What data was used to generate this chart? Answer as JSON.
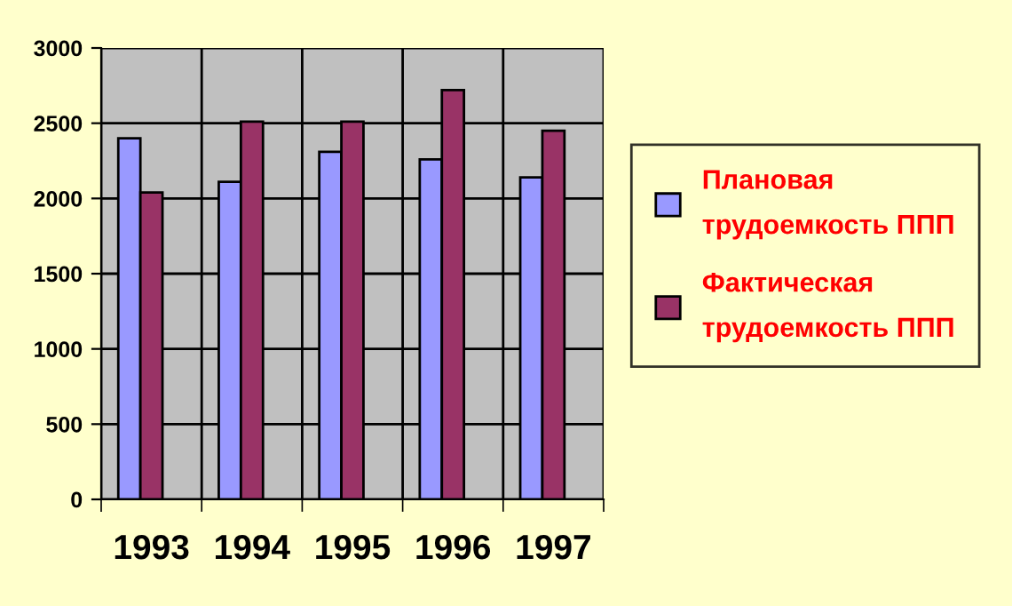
{
  "chart_data": {
    "type": "bar",
    "categories": [
      "1993",
      "1994",
      "1995",
      "1996",
      "1997"
    ],
    "series": [
      {
        "name": "Плановая трудоемкость ППП",
        "color": "#9999ff",
        "values": [
          2400,
          2110,
          2310,
          2260,
          2140
        ]
      },
      {
        "name": "Фактическая трудоемкость ППП",
        "color": "#993366",
        "values": [
          2040,
          2510,
          2510,
          2720,
          2450
        ]
      }
    ],
    "ylim": [
      0,
      3000
    ],
    "yticks": [
      0,
      500,
      1000,
      1500,
      2000,
      2500,
      3000
    ],
    "grid": true,
    "legend": "right"
  }
}
